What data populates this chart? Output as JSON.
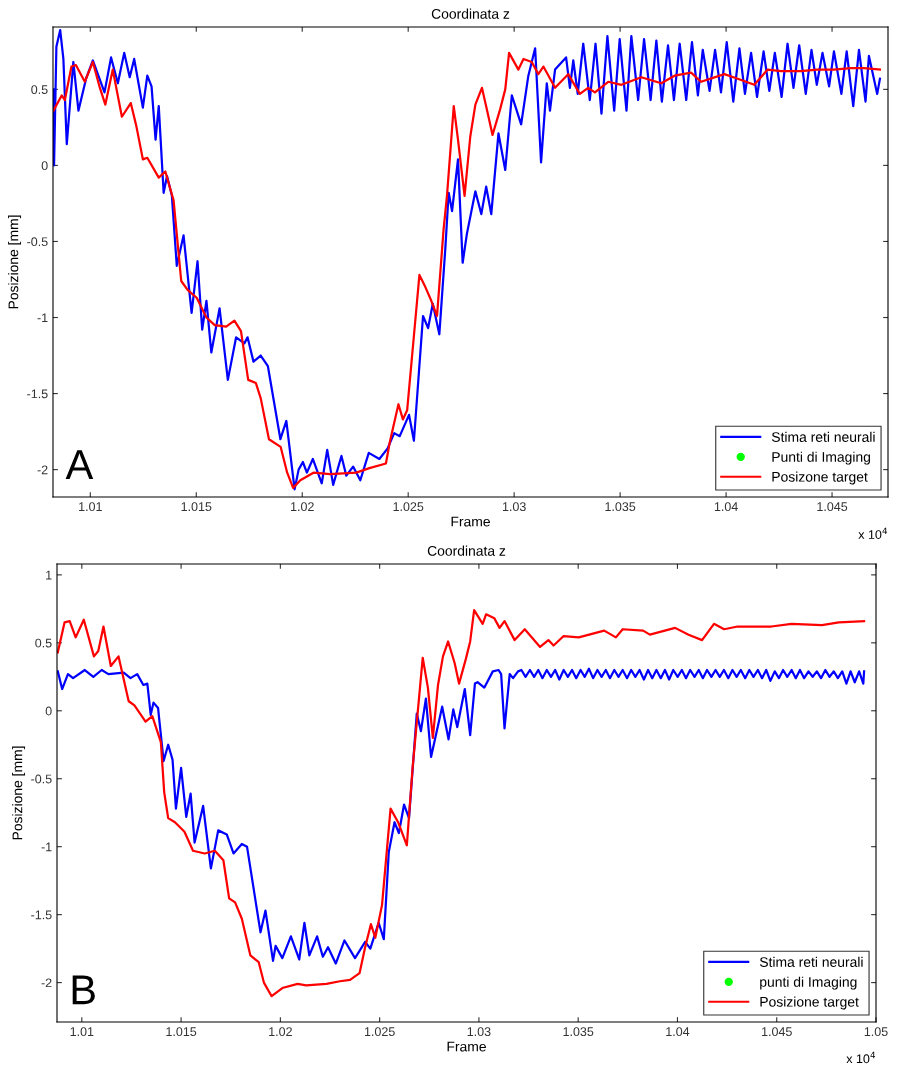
{
  "chart_data": [
    {
      "type": "line",
      "title": "Coordinata z",
      "xlabel": "Frame",
      "ylabel": "Posizione [mm]",
      "xlim": [
        1.00824,
        1.04764
      ],
      "ylim": [
        -2.18,
        0.91
      ],
      "xticks": [
        1.01,
        1.015,
        1.02,
        1.025,
        1.03,
        1.035,
        1.04,
        1.045
      ],
      "yticks": [
        -2,
        -1.5,
        -1,
        -0.5,
        0,
        0.5
      ],
      "grid": false,
      "legend": "lower right",
      "annotations": [
        "x 10$^{4}$",
        "A"
      ],
      "series": [
        {
          "name": "Stima reti neurali",
          "color": "#0000ff",
          "x": [
            1.00826,
            1.00829,
            1.0084,
            1.00858,
            1.00873,
            1.00889,
            1.0092,
            1.00944,
            1.0098,
            1.01012,
            1.01067,
            1.01098,
            1.0113,
            1.0116,
            1.01186,
            1.01207,
            1.01248,
            1.01269,
            1.01289,
            1.01308,
            1.01323,
            1.01346,
            1.01362,
            1.01385,
            1.01408,
            1.0144,
            1.01478,
            1.01506,
            1.01528,
            1.01548,
            1.01571,
            1.0161,
            1.01649,
            1.01688,
            1.01727,
            1.01742,
            1.0177,
            1.01804,
            1.01838,
            1.01897,
            1.01925,
            1.01964,
            1.01983,
            1.02003,
            1.02022,
            1.0205,
            1.02092,
            1.02118,
            1.02146,
            1.02185,
            1.02208,
            1.0224,
            1.02274,
            1.02314,
            1.02364,
            1.02403,
            1.02434,
            1.0246,
            1.02504,
            1.02527,
            1.0257,
            1.02594,
            1.02616,
            1.02647,
            1.02675,
            1.02691,
            1.02707,
            1.02735,
            1.02757,
            1.02777,
            1.02817,
            1.02845,
            1.02868,
            1.02892,
            1.02926,
            1.02958,
            1.02989,
            1.03033,
            1.03067,
            1.03099,
            1.03127,
            1.03154,
            1.03169,
            1.03193,
            1.03245,
            1.03263,
            1.03279,
            1.033,
            1.03326,
            1.03357,
            1.03384,
            1.03412,
            1.0344,
            1.03472,
            1.03498,
            1.0353,
            1.03553,
            1.03585,
            1.03613,
            1.03644,
            1.03671,
            1.03697,
            1.03726,
            1.03754,
            1.03781,
            1.03812,
            1.03839,
            1.03867,
            1.0389,
            1.03922,
            1.03948,
            1.03976,
            1.04003,
            1.04034,
            1.04063,
            1.04089,
            1.04118,
            1.04146,
            1.04177,
            1.04204,
            1.0423,
            1.04262,
            1.0429,
            1.04318,
            1.04345,
            1.04376,
            1.04403,
            1.04428,
            1.04455,
            1.04486,
            1.04509,
            1.04544,
            1.04569,
            1.046,
            1.04627,
            1.04658,
            1.04674,
            1.04713,
            1.04726
          ],
          "values": [
            0.5,
            0.0,
            0.78,
            0.89,
            0.7,
            0.14,
            0.68,
            0.36,
            0.57,
            0.69,
            0.48,
            0.71,
            0.54,
            0.74,
            0.58,
            0.7,
            0.38,
            0.59,
            0.52,
            0.17,
            0.39,
            -0.18,
            -0.07,
            -0.2,
            -0.66,
            -0.46,
            -0.97,
            -0.63,
            -1.08,
            -0.89,
            -1.23,
            -0.94,
            -1.41,
            -1.13,
            -1.17,
            -1.13,
            -1.29,
            -1.25,
            -1.32,
            -1.8,
            -1.68,
            -2.13,
            -2.0,
            -1.95,
            -2.02,
            -1.93,
            -2.09,
            -1.87,
            -2.1,
            -1.91,
            -2.04,
            -1.98,
            -2.07,
            -1.89,
            -1.93,
            -1.86,
            -1.76,
            -1.78,
            -1.64,
            -1.81,
            -0.99,
            -1.07,
            -0.91,
            -1.11,
            -0.55,
            -0.18,
            -0.3,
            0.04,
            -0.64,
            -0.45,
            -0.17,
            -0.32,
            -0.14,
            -0.32,
            0.21,
            -0.03,
            0.46,
            0.27,
            0.59,
            0.77,
            0.02,
            0.54,
            0.36,
            0.63,
            0.71,
            0.51,
            0.69,
            0.47,
            0.8,
            0.43,
            0.8,
            0.34,
            0.85,
            0.36,
            0.83,
            0.36,
            0.85,
            0.43,
            0.83,
            0.43,
            0.82,
            0.42,
            0.79,
            0.43,
            0.8,
            0.43,
            0.81,
            0.46,
            0.76,
            0.49,
            0.76,
            0.48,
            0.81,
            0.42,
            0.77,
            0.47,
            0.74,
            0.45,
            0.75,
            0.49,
            0.74,
            0.45,
            0.8,
            0.51,
            0.79,
            0.47,
            0.76,
            0.53,
            0.74,
            0.52,
            0.75,
            0.47,
            0.75,
            0.39,
            0.76,
            0.42,
            0.72,
            0.47,
            0.57
          ]
        },
        {
          "name": "Punti di Imaging",
          "color": "#00ff00",
          "type": "scatter",
          "marker": "circle"
        },
        {
          "name": "Posizone target",
          "color": "#ff0000",
          "x": [
            1.00826,
            1.00865,
            1.0088,
            1.00911,
            1.00932,
            1.00974,
            1.01012,
            1.01043,
            1.01071,
            1.01106,
            1.01149,
            1.01191,
            1.01217,
            1.01248,
            1.01269,
            1.01323,
            1.01354,
            1.01393,
            1.01429,
            1.0146,
            1.01502,
            1.01548,
            1.01587,
            1.01641,
            1.0168,
            1.01711,
            1.01745,
            1.01781,
            1.01804,
            1.01843,
            1.01898,
            1.01929,
            1.01957,
            1.01991,
            1.02053,
            1.02131,
            1.02255,
            1.02317,
            1.02395,
            1.02413,
            1.02454,
            1.02475,
            1.02495,
            1.02527,
            1.02553,
            1.02581,
            1.02609,
            1.02636,
            1.02667,
            1.02683,
            1.02715,
            1.02735,
            1.02766,
            1.02793,
            1.02817,
            1.02848,
            1.02871,
            1.02898,
            1.02934,
            1.02958,
            1.02976,
            1.0302,
            1.03044,
            1.03083,
            1.03114,
            1.03138,
            1.03193,
            1.03255,
            1.0331,
            1.03349,
            1.03381,
            1.03444,
            1.03506,
            1.036,
            1.03694,
            1.03757,
            1.03835,
            1.03882,
            1.03992,
            1.04055,
            1.04133,
            1.04196,
            1.04259,
            1.04353,
            1.04431,
            1.04509,
            1.04588,
            1.0465,
            1.04726
          ],
          "values": [
            0.36,
            0.46,
            0.43,
            0.65,
            0.66,
            0.55,
            0.68,
            0.52,
            0.4,
            0.63,
            0.32,
            0.41,
            0.26,
            0.04,
            0.05,
            -0.08,
            -0.04,
            -0.23,
            -0.76,
            -0.82,
            -0.87,
            -1.0,
            -1.05,
            -1.06,
            -1.02,
            -1.09,
            -1.41,
            -1.43,
            -1.53,
            -1.8,
            -1.85,
            -2.02,
            -2.12,
            -2.07,
            -2.02,
            -2.03,
            -2.02,
            -1.99,
            -1.96,
            -1.82,
            -1.57,
            -1.67,
            -1.61,
            -1.12,
            -0.72,
            -0.8,
            -0.89,
            -0.99,
            -0.42,
            -0.2,
            0.39,
            0.17,
            -0.2,
            0.19,
            0.4,
            0.51,
            0.37,
            0.2,
            0.37,
            0.5,
            0.74,
            0.63,
            0.7,
            0.68,
            0.6,
            0.65,
            0.51,
            0.6,
            0.47,
            0.51,
            0.48,
            0.55,
            0.53,
            0.58,
            0.54,
            0.59,
            0.61,
            0.55,
            0.6,
            0.57,
            0.53,
            0.63,
            0.62,
            0.62,
            0.63,
            0.63,
            0.64,
            0.64,
            0.63
          ]
        }
      ]
    },
    {
      "type": "line",
      "title": "Coordinata z",
      "xlabel": "Frame",
      "ylabel": "Posizione [mm]",
      "xlim": [
        1.00875,
        1.05
      ],
      "ylim": [
        -2.29,
        1.08
      ],
      "xticks": [
        1.01,
        1.015,
        1.02,
        1.025,
        1.03,
        1.035,
        1.04,
        1.045,
        1.05
      ],
      "yticks": [
        -2,
        -1.5,
        -1,
        -0.5,
        0,
        0.5,
        1
      ],
      "grid": false,
      "legend": "lower right",
      "annotations": [
        "x 10$^{4}$",
        "B"
      ],
      "series": [
        {
          "name": "Stima reti neurali",
          "color": "#0000ff",
          "x": [
            1.00879,
            1.00901,
            1.0093,
            1.00956,
            1.01015,
            1.01058,
            1.011,
            1.01134,
            1.01211,
            1.01245,
            1.01279,
            1.0131,
            1.0133,
            1.01347,
            1.01361,
            1.01384,
            1.01412,
            1.01435,
            1.01457,
            1.01474,
            1.015,
            1.01526,
            1.01548,
            1.01568,
            1.01611,
            1.0165,
            1.01687,
            1.0173,
            1.01764,
            1.01806,
            1.01832,
            1.019,
            1.01925,
            1.01963,
            1.01976,
            1.0201,
            1.02053,
            1.02095,
            1.02121,
            1.02146,
            1.02185,
            1.02214,
            1.0224,
            1.02279,
            1.02323,
            1.02376,
            1.02427,
            1.02453,
            1.02495,
            1.02521,
            1.02546,
            1.02575,
            1.02597,
            1.02623,
            1.02648,
            1.02687,
            1.02708,
            1.02733,
            1.02759,
            1.02815,
            1.02847,
            1.02871,
            1.02891,
            1.02929,
            1.02956,
            1.0298,
            1.02993,
            1.03027,
            1.0307,
            1.03099,
            1.03112,
            1.03129,
            1.03155,
            1.03172,
            1.03197,
            1.03214,
            1.03235,
            1.03257,
            1.03278,
            1.03299,
            1.0332,
            1.03342,
            1.03363,
            1.03384,
            1.03405,
            1.03427,
            1.03448,
            1.03469,
            1.0349,
            1.03512,
            1.03533,
            1.03554,
            1.03575,
            1.03597,
            1.03618,
            1.03639,
            1.0366,
            1.03682,
            1.03703,
            1.03724,
            1.03746,
            1.03767,
            1.03788,
            1.03809,
            1.03831,
            1.03852,
            1.03873,
            1.03894,
            1.03916,
            1.03937,
            1.03958,
            1.03979,
            1.04001,
            1.04022,
            1.04043,
            1.04064,
            1.04086,
            1.04107,
            1.04128,
            1.04149,
            1.04171,
            1.04192,
            1.04213,
            1.04234,
            1.04256,
            1.04277,
            1.04298,
            1.04319,
            1.04341,
            1.04362,
            1.04383,
            1.04405,
            1.04426,
            1.04447,
            1.04468,
            1.0449,
            1.04511,
            1.04532,
            1.04553,
            1.04575,
            1.04596,
            1.04617,
            1.04638,
            1.0466,
            1.04681,
            1.04702,
            1.04723,
            1.04745,
            1.04766,
            1.04787,
            1.04808,
            1.0483,
            1.04851,
            1.04872,
            1.04893,
            1.04915,
            1.04936,
            1.0494
          ],
          "values": [
            0.29,
            0.16,
            0.27,
            0.24,
            0.3,
            0.25,
            0.3,
            0.27,
            0.28,
            0.24,
            0.27,
            0.19,
            0.2,
            -0.03,
            0.06,
            0.02,
            -0.37,
            -0.25,
            -0.36,
            -0.72,
            -0.42,
            -0.78,
            -0.61,
            -0.97,
            -0.7,
            -1.16,
            -0.88,
            -0.91,
            -1.05,
            -0.98,
            -1.0,
            -1.63,
            -1.47,
            -1.84,
            -1.73,
            -1.82,
            -1.66,
            -1.83,
            -1.56,
            -1.8,
            -1.66,
            -1.81,
            -1.74,
            -1.86,
            -1.69,
            -1.82,
            -1.7,
            -1.75,
            -1.56,
            -1.68,
            -1.04,
            -0.82,
            -0.9,
            -0.69,
            -0.79,
            -0.02,
            -0.15,
            0.09,
            -0.34,
            0.03,
            -0.21,
            0.01,
            -0.12,
            0.16,
            -0.18,
            0.2,
            0.21,
            0.17,
            0.29,
            0.3,
            0.27,
            -0.13,
            0.27,
            0.24,
            0.29,
            0.3,
            0.25,
            0.3,
            0.25,
            0.3,
            0.24,
            0.3,
            0.25,
            0.3,
            0.23,
            0.3,
            0.25,
            0.3,
            0.24,
            0.3,
            0.25,
            0.31,
            0.24,
            0.3,
            0.25,
            0.3,
            0.24,
            0.3,
            0.25,
            0.3,
            0.24,
            0.3,
            0.25,
            0.3,
            0.23,
            0.3,
            0.24,
            0.3,
            0.24,
            0.3,
            0.23,
            0.3,
            0.25,
            0.3,
            0.24,
            0.3,
            0.25,
            0.3,
            0.24,
            0.3,
            0.25,
            0.3,
            0.25,
            0.3,
            0.24,
            0.3,
            0.25,
            0.3,
            0.24,
            0.3,
            0.25,
            0.3,
            0.24,
            0.3,
            0.22,
            0.29,
            0.24,
            0.3,
            0.25,
            0.3,
            0.24,
            0.3,
            0.24,
            0.29,
            0.25,
            0.29,
            0.24,
            0.3,
            0.25,
            0.29,
            0.24,
            0.29,
            0.2,
            0.29,
            0.21,
            0.29,
            0.2,
            0.29
          ]
        },
        {
          "name": "punti di Imaging",
          "color": "#00ff00",
          "type": "scatter",
          "marker": "circle"
        },
        {
          "name": "Posizione target",
          "color": "#ff0000",
          "x": [
            1.00879,
            1.00913,
            1.00939,
            1.00969,
            1.0101,
            1.01061,
            1.01083,
            1.01109,
            1.01146,
            1.01185,
            1.01236,
            1.01265,
            1.01321,
            1.01355,
            1.01398,
            1.01415,
            1.01435,
            1.01469,
            1.01517,
            1.0156,
            1.01619,
            1.0167,
            1.01713,
            1.01742,
            1.01772,
            1.01806,
            1.01849,
            1.01891,
            1.01917,
            1.01956,
            1.0201,
            1.02087,
            1.0213,
            1.02232,
            1.023,
            1.02351,
            1.02399,
            1.02427,
            1.02456,
            1.02478,
            1.02512,
            1.02555,
            1.02593,
            1.02637,
            1.02666,
            1.02717,
            1.02743,
            1.02768,
            1.02794,
            1.02819,
            1.02845,
            1.02878,
            1.029,
            1.02934,
            1.02956,
            1.02976,
            1.03019,
            1.03036,
            1.03078,
            1.03104,
            1.03129,
            1.0318,
            1.03231,
            1.03308,
            1.0335,
            1.03376,
            1.03427,
            1.03503,
            1.03631,
            1.0369,
            1.03724,
            1.03827,
            1.03861,
            1.03988,
            1.04056,
            1.04124,
            1.04184,
            1.04235,
            1.04303,
            1.04473,
            1.04575,
            1.04728,
            1.04813,
            1.0494
          ],
          "values": [
            0.43,
            0.65,
            0.66,
            0.54,
            0.67,
            0.4,
            0.44,
            0.62,
            0.33,
            0.4,
            0.07,
            0.04,
            -0.08,
            -0.04,
            -0.23,
            -0.6,
            -0.79,
            -0.82,
            -0.89,
            -1.03,
            -1.05,
            -1.03,
            -1.1,
            -1.38,
            -1.41,
            -1.53,
            -1.8,
            -1.85,
            -2.0,
            -2.1,
            -2.04,
            -2.01,
            -2.02,
            -2.01,
            -1.99,
            -1.98,
            -1.93,
            -1.74,
            -1.57,
            -1.67,
            -1.43,
            -0.72,
            -0.82,
            -0.99,
            -0.42,
            0.39,
            0.17,
            -0.2,
            0.19,
            0.4,
            0.51,
            0.35,
            0.2,
            0.38,
            0.51,
            0.74,
            0.64,
            0.71,
            0.68,
            0.61,
            0.66,
            0.52,
            0.6,
            0.47,
            0.52,
            0.48,
            0.55,
            0.54,
            0.59,
            0.54,
            0.6,
            0.59,
            0.56,
            0.61,
            0.56,
            0.52,
            0.64,
            0.6,
            0.62,
            0.62,
            0.64,
            0.63,
            0.65,
            0.66
          ]
        }
      ]
    }
  ]
}
